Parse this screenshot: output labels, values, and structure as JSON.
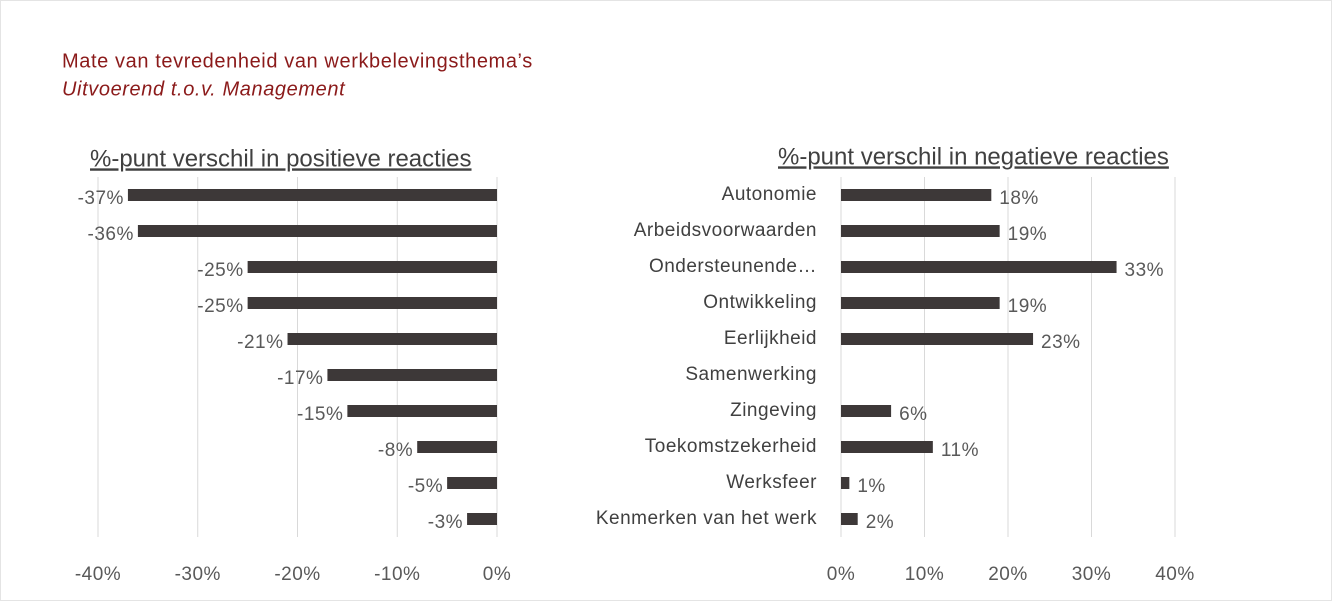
{
  "title": "Mate van tevredenheid van werkbelevingsthema’s",
  "subtitle": "Uitvoerend t.o.v. Management",
  "chart_data": [
    {
      "type": "bar",
      "orientation": "horizontal",
      "x_label": "%-punt verschil in positieve reacties",
      "color": "#3d3838",
      "grid": true,
      "values": [
        -37,
        -36,
        -25,
        -25,
        -21,
        -17,
        -15,
        -8,
        -5,
        -3
      ],
      "value_labels": [
        "-37%",
        "-36%",
        "-25%",
        "-25%",
        "-21%",
        "-17%",
        "-15%",
        "-8%",
        "-5%",
        "-3%"
      ],
      "xlim": [
        -40,
        0
      ],
      "xticks": [
        {
          "value": -40,
          "label": "-40%"
        },
        {
          "value": -30,
          "label": "-30%"
        },
        {
          "value": -20,
          "label": "-20%"
        },
        {
          "value": -10,
          "label": "-10%"
        },
        {
          "value": 0,
          "label": "0%"
        }
      ]
    },
    {
      "type": "bar",
      "orientation": "horizontal",
      "x_label": "%-punt verschil in negatieve reacties",
      "color": "#3d3838",
      "grid": true,
      "categories": [
        "Autonomie",
        "Arbeidsvoorwaarden",
        "Ondersteunende…",
        "Ontwikkeling",
        "Eerlijkheid",
        "Samenwerking",
        "Zingeving",
        "Toekomstzekerheid",
        "Werksfeer",
        "Kenmerken van het werk"
      ],
      "values": [
        18,
        19,
        33,
        19,
        23,
        null,
        6,
        11,
        1,
        2
      ],
      "value_labels": [
        "18%",
        "19%",
        "33%",
        "19%",
        "23%",
        null,
        "6%",
        "11%",
        "1%",
        "2%"
      ],
      "xlim": [
        0,
        40
      ],
      "xticks": [
        {
          "value": 0,
          "label": "0%"
        },
        {
          "value": 10,
          "label": "10%"
        },
        {
          "value": 20,
          "label": "20%"
        },
        {
          "value": 30,
          "label": "30%"
        },
        {
          "value": 40,
          "label": "40%"
        }
      ]
    }
  ]
}
